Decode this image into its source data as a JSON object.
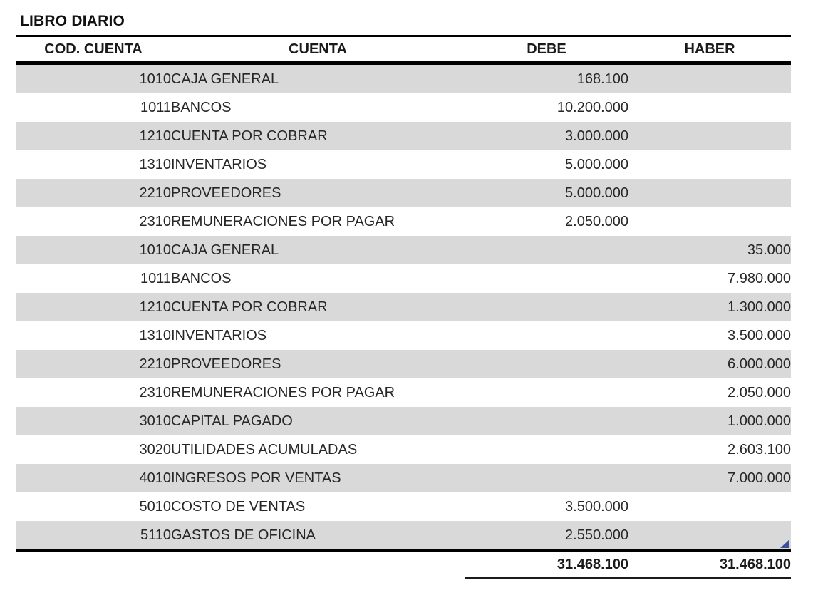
{
  "title": "LIBRO DIARIO",
  "table": {
    "columns": [
      "COD. CUENTA",
      "CUENTA",
      "DEBE",
      "HABER"
    ],
    "rows": [
      {
        "code": "1010",
        "name": "CAJA GENERAL",
        "debe": "168.100",
        "haber": ""
      },
      {
        "code": "1011",
        "name": "BANCOS",
        "debe": "10.200.000",
        "haber": ""
      },
      {
        "code": "1210",
        "name": "CUENTA POR COBRAR",
        "debe": "3.000.000",
        "haber": ""
      },
      {
        "code": "1310",
        "name": "INVENTARIOS",
        "debe": "5.000.000",
        "haber": ""
      },
      {
        "code": "2210",
        "name": "PROVEEDORES",
        "debe": "5.000.000",
        "haber": ""
      },
      {
        "code": "2310",
        "name": "REMUNERACIONES POR PAGAR",
        "debe": "2.050.000",
        "haber": ""
      },
      {
        "code": "1010",
        "name": "CAJA GENERAL",
        "debe": "",
        "haber": "35.000"
      },
      {
        "code": "1011",
        "name": "BANCOS",
        "debe": "",
        "haber": "7.980.000"
      },
      {
        "code": "1210",
        "name": "CUENTA POR COBRAR",
        "debe": "",
        "haber": "1.300.000"
      },
      {
        "code": "1310",
        "name": "INVENTARIOS",
        "debe": "",
        "haber": "3.500.000"
      },
      {
        "code": "2210",
        "name": "PROVEEDORES",
        "debe": "",
        "haber": "6.000.000"
      },
      {
        "code": "2310",
        "name": "REMUNERACIONES POR PAGAR",
        "debe": "",
        "haber": "2.050.000"
      },
      {
        "code": "3010",
        "name": "CAPITAL PAGADO",
        "debe": "",
        "haber": "1.000.000"
      },
      {
        "code": "3020",
        "name": "UTILIDADES ACUMULADAS",
        "debe": "",
        "haber": "2.603.100"
      },
      {
        "code": "4010",
        "name": "INGRESOS POR VENTAS",
        "debe": "",
        "haber": "7.000.000"
      },
      {
        "code": "5010",
        "name": "COSTO DE VENTAS",
        "debe": "3.500.000",
        "haber": ""
      },
      {
        "code": "5110",
        "name": "GASTOS DE OFICINA",
        "debe": "2.550.000",
        "haber": ""
      }
    ],
    "totals": {
      "debe": "31.468.100",
      "haber": "31.468.100"
    }
  },
  "colors": {
    "row_shade": "#d9d9d9",
    "border": "#000000",
    "text": "#262626",
    "corner_marker": "#3f4e9c"
  }
}
